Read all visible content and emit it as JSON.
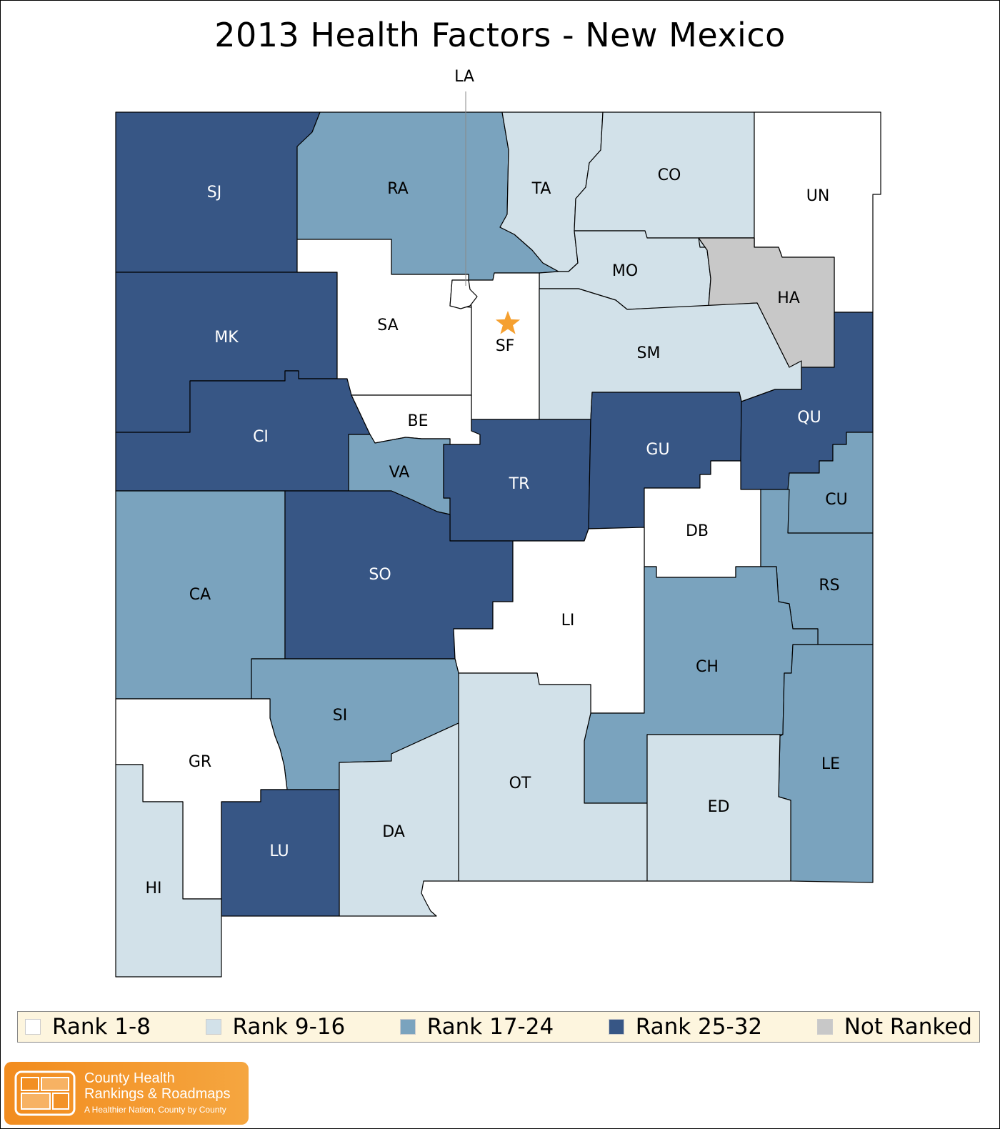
{
  "title": "2013 Health Factors - New Mexico",
  "colors": {
    "rank_1_8": "#ffffff",
    "rank_9_16": "#d2e1e9",
    "rank_17_24": "#7aa3be",
    "rank_25_32": "#375685",
    "not_ranked": "#c8c8c8",
    "capital_star": "#f5a030",
    "legend_bg": "#fdf5de"
  },
  "legend": [
    {
      "label": "Rank 1-8",
      "color": "#ffffff"
    },
    {
      "label": "Rank 9-16",
      "color": "#d2e1e9"
    },
    {
      "label": "Rank 17-24",
      "color": "#7aa3be"
    },
    {
      "label": "Rank 25-32",
      "color": "#375685"
    },
    {
      "label": "Not Ranked",
      "color": "#c8c8c8"
    }
  ],
  "counties": [
    {
      "abbr": "SJ",
      "rank_group": "Rank 25-32"
    },
    {
      "abbr": "RA",
      "rank_group": "Rank 17-24"
    },
    {
      "abbr": "TA",
      "rank_group": "Rank 9-16"
    },
    {
      "abbr": "CO",
      "rank_group": "Rank 9-16"
    },
    {
      "abbr": "UN",
      "rank_group": "Rank 1-8"
    },
    {
      "abbr": "MO",
      "rank_group": "Rank 9-16"
    },
    {
      "abbr": "HA",
      "rank_group": "Not Ranked"
    },
    {
      "abbr": "MK",
      "rank_group": "Rank 25-32"
    },
    {
      "abbr": "SA",
      "rank_group": "Rank 1-8"
    },
    {
      "abbr": "SF",
      "rank_group": "Rank 1-8"
    },
    {
      "abbr": "SM",
      "rank_group": "Rank 9-16"
    },
    {
      "abbr": "LA",
      "rank_group": "Rank 1-8"
    },
    {
      "abbr": "CI",
      "rank_group": "Rank 25-32"
    },
    {
      "abbr": "BE",
      "rank_group": "Rank 1-8"
    },
    {
      "abbr": "VA",
      "rank_group": "Rank 17-24"
    },
    {
      "abbr": "TR",
      "rank_group": "Rank 25-32"
    },
    {
      "abbr": "GU",
      "rank_group": "Rank 25-32"
    },
    {
      "abbr": "QU",
      "rank_group": "Rank 25-32"
    },
    {
      "abbr": "CU",
      "rank_group": "Rank 17-24"
    },
    {
      "abbr": "DB",
      "rank_group": "Rank 1-8"
    },
    {
      "abbr": "RS",
      "rank_group": "Rank 17-24"
    },
    {
      "abbr": "CA",
      "rank_group": "Rank 17-24"
    },
    {
      "abbr": "SO",
      "rank_group": "Rank 25-32"
    },
    {
      "abbr": "LI",
      "rank_group": "Rank 1-8"
    },
    {
      "abbr": "CH",
      "rank_group": "Rank 17-24"
    },
    {
      "abbr": "SI",
      "rank_group": "Rank 17-24"
    },
    {
      "abbr": "GR",
      "rank_group": "Rank 1-8"
    },
    {
      "abbr": "LE",
      "rank_group": "Rank 17-24"
    },
    {
      "abbr": "OT",
      "rank_group": "Rank 9-16"
    },
    {
      "abbr": "ED",
      "rank_group": "Rank 9-16"
    },
    {
      "abbr": "DA",
      "rank_group": "Rank 9-16"
    },
    {
      "abbr": "LU",
      "rank_group": "Rank 25-32"
    },
    {
      "abbr": "HI",
      "rank_group": "Rank 9-16"
    }
  ],
  "logo": {
    "line1": "County Health",
    "line2": "Rankings & Roadmaps",
    "tagline": "A Healthier Nation, County by County"
  }
}
